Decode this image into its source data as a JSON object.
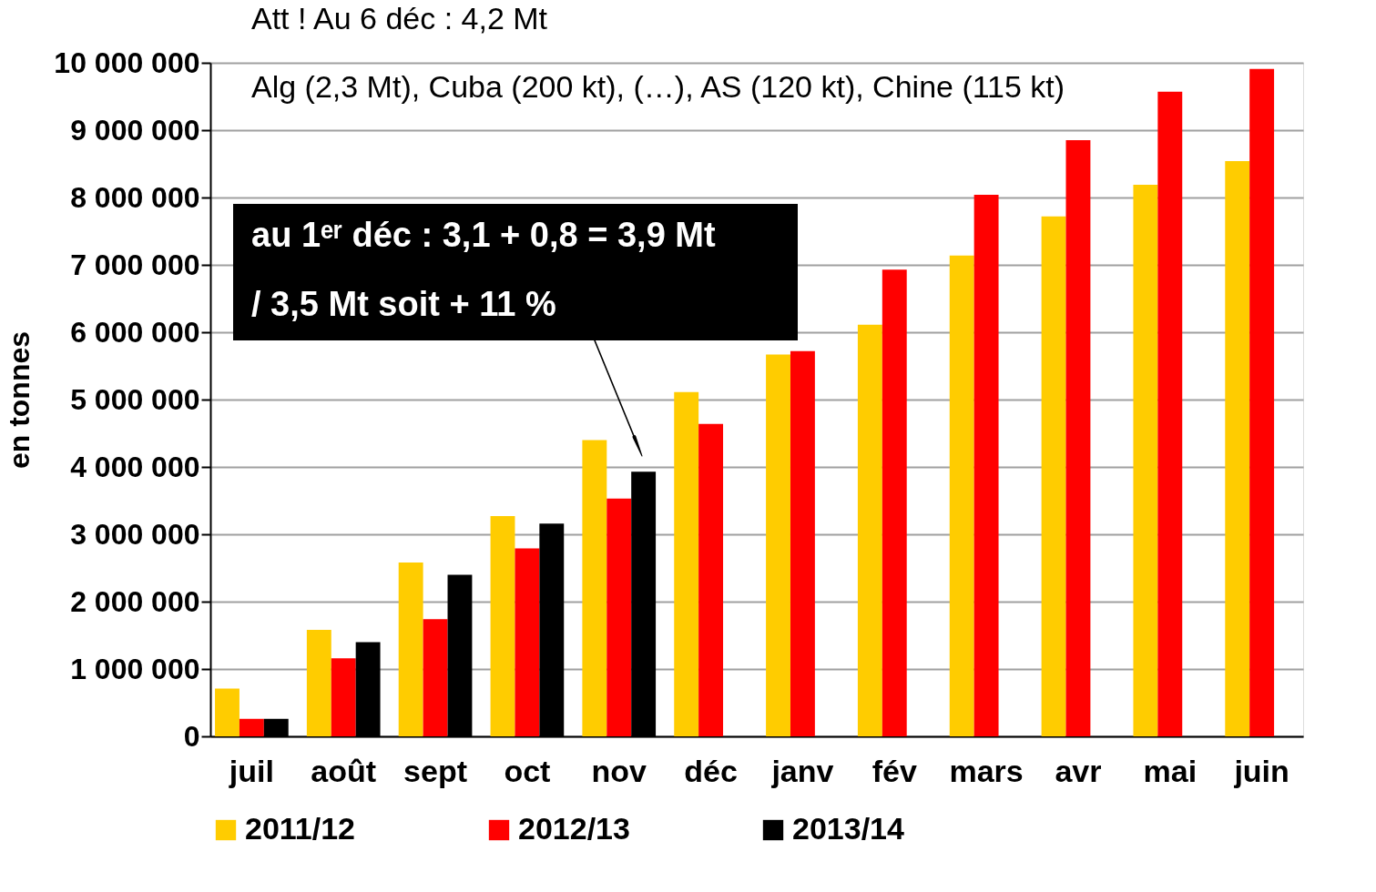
{
  "chart_data": {
    "type": "bar",
    "title": "Att ! Au 6 déc : 4,2 Mt",
    "subtitle": "Alg (2,3 Mt), Cuba (200 kt), (…), AS (120 kt), Chine (115 kt)",
    "ylabel": "en tonnes",
    "categories": [
      "juil",
      "août",
      "sept",
      "oct",
      "nov",
      "déc",
      "janv",
      "fév",
      "mars",
      "avr",
      "mai",
      "juin"
    ],
    "series": [
      {
        "name": "2011/12",
        "color": "#ffcc00",
        "values": [
          710000,
          1580000,
          2580000,
          3270000,
          4400000,
          5110000,
          5670000,
          6110000,
          7140000,
          7720000,
          8190000,
          8540000
        ]
      },
      {
        "name": "2012/13",
        "color": "#ff0000",
        "values": [
          260000,
          1160000,
          1740000,
          2790000,
          3530000,
          4640000,
          5720000,
          6930000,
          8040000,
          8850000,
          9570000,
          9910000
        ]
      },
      {
        "name": "2013/14",
        "color": "#000000",
        "values": [
          260000,
          1400000,
          2400000,
          3160000,
          3930000,
          null,
          null,
          null,
          null,
          null,
          null,
          null
        ]
      }
    ],
    "ylim": [
      0,
      10000000
    ],
    "yticks": [
      {
        "value": 0,
        "label": "0"
      },
      {
        "value": 1000000,
        "label": "1 000 000"
      },
      {
        "value": 2000000,
        "label": "2 000 000"
      },
      {
        "value": 3000000,
        "label": "3 000 000"
      },
      {
        "value": 4000000,
        "label": "4 000 000"
      },
      {
        "value": 5000000,
        "label": "5 000 000"
      },
      {
        "value": 6000000,
        "label": "6 000 000"
      },
      {
        "value": 7000000,
        "label": "7 000 000"
      },
      {
        "value": 8000000,
        "label": "8 000 000"
      },
      {
        "value": 9000000,
        "label": "9 000 000"
      },
      {
        "value": 10000000,
        "label": "10 000 000"
      }
    ],
    "annotations": [
      "au 1ᵉʳ déc : 3,1 + 0,8 = 3,9 Mt\n/ 3,5 Mt soit + 11 %"
    ],
    "grid": "y",
    "legend": "bottom"
  }
}
